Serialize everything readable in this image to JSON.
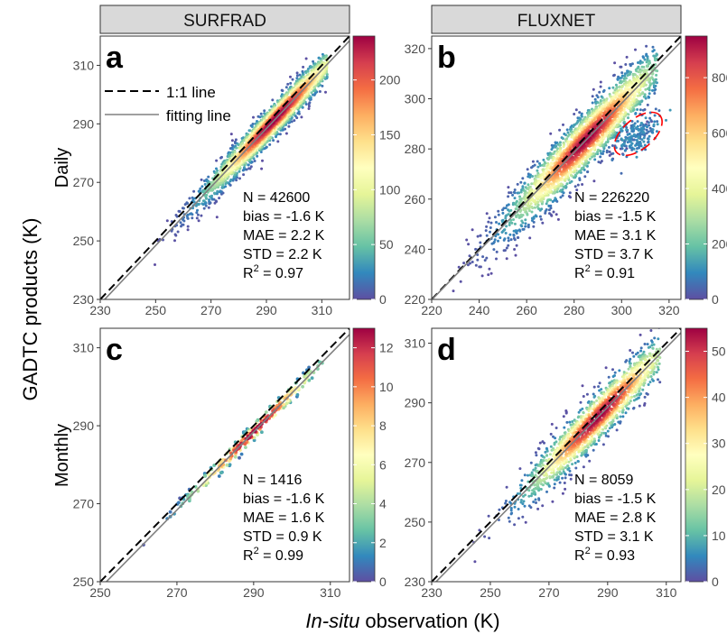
{
  "figure": {
    "y_title": "GADTC products (K)",
    "x_title_italic": "In-situ",
    "x_title_rest": " observation (K)",
    "col_strips": [
      "SURFRAD",
      "FLUXNET"
    ],
    "row_labels": [
      "Daily",
      "Monthly"
    ],
    "legend": {
      "line1": "1:1 line",
      "line2": "fitting line"
    },
    "palette": [
      "#5e4fa2",
      "#3288bd",
      "#66c2a5",
      "#abdda4",
      "#e6f598",
      "#ffffbf",
      "#fee08b",
      "#fdae61",
      "#f46d43",
      "#d53e4f",
      "#9e0142"
    ],
    "fit_color": "#808080",
    "outlier_color": "#ff0000"
  },
  "chart_data": [
    {
      "type": "scatter",
      "panel": "a",
      "dataset": "SURFRAD",
      "timescale": "Daily",
      "xlim": [
        230,
        320
      ],
      "ylim": [
        230,
        320
      ],
      "xticks": [
        230,
        250,
        270,
        290,
        310
      ],
      "yticks": [
        230,
        250,
        270,
        290,
        310
      ],
      "stats": [
        "N = 42600",
        "bias = -1.6 K",
        "MAE = 2.2 K",
        "STD = 2.2 K"
      ],
      "r2": "0.97",
      "colorbar": {
        "max": 240,
        "ticks": [
          0,
          50,
          100,
          150,
          200
        ]
      },
      "point_range": [
        242,
        312
      ],
      "density_peak": 293,
      "fit": {
        "slope": 1.0,
        "intercept": -1.6
      },
      "spread": 2.2
    },
    {
      "type": "scatter",
      "panel": "b",
      "dataset": "FLUXNET",
      "timescale": "Daily",
      "xlim": [
        220,
        325
      ],
      "ylim": [
        220,
        325
      ],
      "xticks": [
        220,
        240,
        260,
        280,
        300,
        320
      ],
      "yticks": [
        220,
        240,
        260,
        280,
        300,
        320
      ],
      "stats": [
        "N = 226220",
        "bias = -1.5 K",
        "MAE = 3.1 K",
        "STD = 3.7 K"
      ],
      "r2": "0.91",
      "colorbar": {
        "max": 950,
        "ticks": [
          0,
          200,
          400,
          600,
          800
        ]
      },
      "point_range": [
        228,
        315
      ],
      "density_peak": 285,
      "fit": {
        "slope": 0.98,
        "intercept": 4.2
      },
      "spread": 3.7,
      "outlier_ellipse": {
        "cx": 307,
        "cy": 286,
        "rx": 12,
        "ry": 6,
        "angle_deg": 40
      }
    },
    {
      "type": "scatter",
      "panel": "c",
      "dataset": "SURFRAD",
      "timescale": "Monthly",
      "xlim": [
        250,
        315
      ],
      "ylim": [
        250,
        315
      ],
      "xticks": [
        250,
        270,
        290,
        310
      ],
      "yticks": [
        250,
        270,
        290,
        310
      ],
      "stats": [
        "N = 1416",
        "bias = -1.6 K",
        "MAE = 1.6 K",
        "STD = 0.9 K"
      ],
      "r2": "0.99",
      "colorbar": {
        "max": 13,
        "ticks": [
          0,
          2,
          4,
          6,
          8,
          10,
          12
        ]
      },
      "point_range": [
        257,
        308
      ],
      "density_peak": 290,
      "fit": {
        "slope": 1.0,
        "intercept": -1.6
      },
      "spread": 0.9
    },
    {
      "type": "scatter",
      "panel": "d",
      "dataset": "FLUXNET",
      "timescale": "Monthly",
      "xlim": [
        230,
        315
      ],
      "ylim": [
        230,
        315
      ],
      "xticks": [
        230,
        250,
        270,
        290,
        310
      ],
      "yticks": [
        230,
        250,
        270,
        290,
        310
      ],
      "stats": [
        "N = 8059",
        "bias = -1.5 K",
        "MAE = 2.8 K",
        "STD = 3.1 K"
      ],
      "r2": "0.93",
      "colorbar": {
        "max": 55,
        "ticks": [
          0,
          10,
          20,
          30,
          40,
          50
        ]
      },
      "point_range": [
        240,
        308
      ],
      "density_peak": 287,
      "fit": {
        "slope": 1.0,
        "intercept": -1.5
      },
      "spread": 3.1
    }
  ]
}
